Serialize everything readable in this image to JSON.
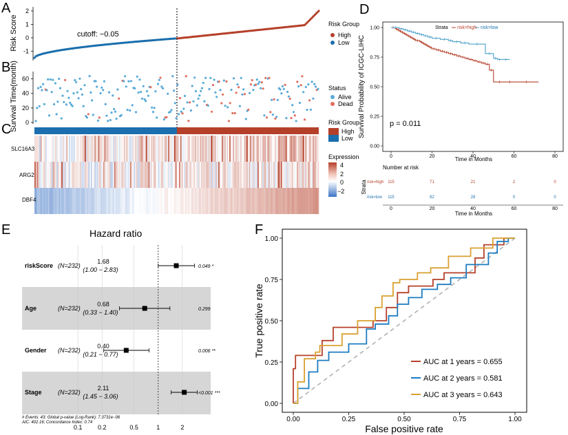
{
  "panels": {
    "a": "A",
    "b": "B",
    "c": "C",
    "d": "D",
    "e": "E",
    "f": "F"
  },
  "colors": {
    "high": "#b5402a",
    "low": "#1b6fae",
    "high_pt": "#e07060",
    "low_pt": "#5aaad8",
    "grid": "#e6e6e6",
    "gray_band": "#d6d6d6",
    "diag": "#b0b0b0",
    "auc1": "#b5402a",
    "auc2": "#1b7bc0",
    "auc3": "#d9a030"
  },
  "chart_data": [
    {
      "id": "risk-score",
      "type": "scatter",
      "title": "",
      "ylabel": "Risk Score",
      "ylim": [
        -1.7,
        2.2
      ],
      "yticks": [
        "-1",
        "0",
        "1",
        "2"
      ],
      "cutoff_label": "cutoff: −0.05",
      "n_total": 232,
      "n_low": 116,
      "n_high": 116,
      "low_score_range": [
        -1.5,
        -0.05
      ],
      "high_score_range": [
        -0.05,
        2.05
      ],
      "legend": {
        "title": "Risk Group",
        "items": [
          "High",
          "Low"
        ]
      }
    },
    {
      "id": "survival-time",
      "type": "scatter",
      "ylabel": "Survival Time(month)",
      "ylim": [
        0,
        70
      ],
      "yticks": [
        "0",
        "20",
        "40",
        "60"
      ],
      "legend": {
        "title": "Status",
        "items": [
          "Alive",
          "Dead"
        ]
      }
    },
    {
      "id": "expression-heatmap",
      "type": "heatmap",
      "genes": [
        "SLC16A3",
        "ARG2",
        "DBF4"
      ],
      "legend_group": {
        "title": "Risk Group",
        "items": [
          "High",
          "Low"
        ]
      },
      "legend_expr": {
        "title": "Expression",
        "ticks": [
          "4",
          "2",
          "0",
          "−2"
        ]
      },
      "value_range": [
        -3,
        4
      ]
    },
    {
      "id": "km-curve",
      "type": "line",
      "ylabel": "Survival Probability of ICGC-LIHC",
      "xlabel": "Time in Months",
      "xlim": [
        0,
        80
      ],
      "ylim": [
        0,
        1
      ],
      "xticks": [
        "0",
        "20",
        "40",
        "60",
        "80"
      ],
      "yticks": [
        "0.00",
        "0.25",
        "0.50",
        "0.75",
        "1.00"
      ],
      "legend_title": "Strata",
      "legend_items": [
        "risk=high",
        "risk=low"
      ],
      "pvalue": "p = 0.011",
      "series": [
        {
          "name": "risk=high",
          "x": [
            0,
            2,
            3,
            4,
            5,
            6,
            7,
            8,
            9,
            10,
            11,
            12,
            14,
            15,
            16,
            17,
            18,
            19,
            20,
            22,
            24,
            26,
            28,
            30,
            32,
            34,
            36,
            38,
            40,
            42,
            44,
            46,
            48,
            50,
            56,
            60,
            72
          ],
          "y": [
            1.0,
            0.99,
            0.98,
            0.97,
            0.96,
            0.95,
            0.94,
            0.93,
            0.92,
            0.91,
            0.9,
            0.89,
            0.88,
            0.87,
            0.86,
            0.85,
            0.84,
            0.83,
            0.82,
            0.81,
            0.8,
            0.79,
            0.78,
            0.77,
            0.76,
            0.75,
            0.74,
            0.73,
            0.72,
            0.71,
            0.7,
            0.69,
            0.64,
            0.54,
            0.54,
            0.54,
            0.54
          ]
        },
        {
          "name": "risk=low",
          "x": [
            0,
            4,
            6,
            8,
            10,
            12,
            14,
            16,
            18,
            20,
            24,
            28,
            30,
            34,
            38,
            46,
            50,
            52,
            54,
            58
          ],
          "y": [
            1.0,
            0.99,
            0.98,
            0.97,
            0.96,
            0.95,
            0.94,
            0.93,
            0.92,
            0.91,
            0.9,
            0.89,
            0.88,
            0.87,
            0.86,
            0.78,
            0.74,
            0.73,
            0.73,
            0.73
          ]
        }
      ]
    },
    {
      "id": "number-at-risk",
      "type": "table",
      "title": "Number at risk",
      "xlabel": "Time in Months",
      "xticks": [
        "0",
        "20",
        "40",
        "60",
        "80"
      ],
      "row_labels": [
        "risk=high",
        "risk=low"
      ],
      "axis_title": "Strata",
      "rows": [
        [
          "115",
          "71",
          "21",
          "2",
          "0"
        ],
        [
          "115",
          "82",
          "28",
          "0",
          "0"
        ]
      ]
    },
    {
      "id": "forest",
      "type": "scatter",
      "title": "Hazard ratio",
      "xticks": [
        "0.1",
        "0.2",
        "0.5",
        "1",
        "2"
      ],
      "xlim": [
        0.07,
        4.0
      ],
      "rows": [
        {
          "var": "riskScore",
          "n": "(N=232)",
          "hr": "1.68",
          "ci": "(1.00 − 2.83)",
          "p": "0.049 *",
          "hr_val": 1.68,
          "lo": 1.0,
          "hi": 2.83
        },
        {
          "var": "Age",
          "n": "(N=232)",
          "hr": "0.68",
          "ci": "(0.33 − 1.40)",
          "p": "0.299",
          "hr_val": 0.68,
          "lo": 0.33,
          "hi": 1.4
        },
        {
          "var": "Gender",
          "n": "(N=232)",
          "hr": "0.40",
          "ci": "(0.21 − 0.77)",
          "p": "0.006 **",
          "hr_val": 0.4,
          "lo": 0.21,
          "hi": 0.77
        },
        {
          "var": "Stage",
          "n": "(N=232)",
          "hr": "2.11",
          "ci": "(1.45 − 3.06)",
          "p": "<0.001 ***",
          "hr_val": 2.11,
          "lo": 1.45,
          "hi": 3.06
        }
      ],
      "footnote1": "# Events: 43; Global p-value (Log-Rank): 7.3731e−06",
      "footnote2": "AIC: 402.16; Concordance Index: 0.74"
    },
    {
      "id": "roc",
      "type": "line",
      "xlabel": "False positive rate",
      "ylabel": "True positive rate",
      "xlim": [
        0,
        1
      ],
      "ylim": [
        0,
        1
      ],
      "xticks": [
        "0.00",
        "0.25",
        "0.50",
        "0.75",
        "1.00"
      ],
      "yticks": [
        "0.00",
        "0.25",
        "0.50",
        "0.75",
        "1.00"
      ],
      "series": [
        {
          "name": "AUC at 1 years = 0.655",
          "x": [
            0,
            0.0,
            0.01,
            0.01,
            0.13,
            0.13,
            0.18,
            0.18,
            0.36,
            0.36,
            0.42,
            0.42,
            0.47,
            0.47,
            0.52,
            0.52,
            0.63,
            0.63,
            0.68,
            0.68,
            0.82,
            0.82,
            0.86,
            0.86,
            0.95,
            0.95,
            1.0
          ],
          "y": [
            0,
            0.21,
            0.21,
            0.29,
            0.29,
            0.38,
            0.38,
            0.46,
            0.46,
            0.5,
            0.5,
            0.58,
            0.58,
            0.67,
            0.67,
            0.71,
            0.71,
            0.75,
            0.75,
            0.79,
            0.79,
            0.88,
            0.88,
            0.96,
            0.96,
            1.0,
            1.0
          ]
        },
        {
          "name": "AUC at 2 years = 0.581",
          "x": [
            0,
            0.02,
            0.02,
            0.07,
            0.07,
            0.11,
            0.11,
            0.16,
            0.16,
            0.25,
            0.25,
            0.33,
            0.33,
            0.37,
            0.37,
            0.43,
            0.43,
            0.47,
            0.47,
            0.52,
            0.52,
            0.58,
            0.58,
            0.65,
            0.65,
            0.71,
            0.71,
            0.78,
            0.78,
            0.88,
            0.88,
            0.92,
            0.92,
            0.97,
            0.97,
            1.0
          ],
          "y": [
            0,
            0,
            0.09,
            0.09,
            0.19,
            0.19,
            0.26,
            0.26,
            0.31,
            0.31,
            0.36,
            0.36,
            0.45,
            0.45,
            0.48,
            0.48,
            0.53,
            0.53,
            0.6,
            0.6,
            0.64,
            0.64,
            0.69,
            0.69,
            0.72,
            0.72,
            0.76,
            0.76,
            0.84,
            0.84,
            0.91,
            0.91,
            0.98,
            0.98,
            1.0,
            1.0
          ]
        },
        {
          "name": "AUC at 3 years = 0.643",
          "x": [
            0,
            0.02,
            0.02,
            0.05,
            0.05,
            0.1,
            0.1,
            0.12,
            0.12,
            0.22,
            0.22,
            0.29,
            0.29,
            0.37,
            0.37,
            0.4,
            0.4,
            0.45,
            0.45,
            0.48,
            0.48,
            0.56,
            0.56,
            0.62,
            0.62,
            0.7,
            0.7,
            0.8,
            0.8,
            0.9,
            0.9,
            0.95,
            0.95,
            1.0
          ],
          "y": [
            0,
            0,
            0.13,
            0.13,
            0.27,
            0.27,
            0.31,
            0.31,
            0.35,
            0.35,
            0.42,
            0.42,
            0.5,
            0.5,
            0.58,
            0.58,
            0.65,
            0.65,
            0.73,
            0.73,
            0.75,
            0.75,
            0.79,
            0.79,
            0.82,
            0.82,
            0.89,
            0.89,
            0.94,
            0.94,
            1.0,
            1.0,
            1.0,
            1.0
          ]
        }
      ]
    }
  ]
}
